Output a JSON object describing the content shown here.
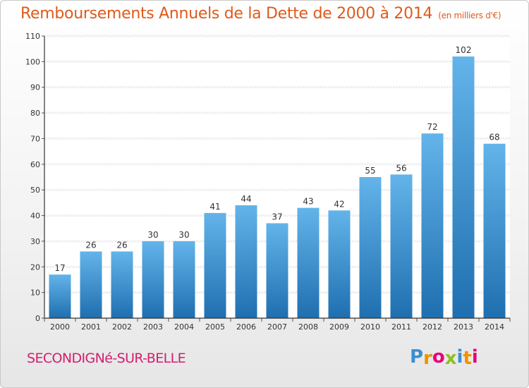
{
  "header": {
    "title": "Remboursements Annuels de la Dette de 2000 à 2014",
    "units": "(en milliers d'€)"
  },
  "footer": {
    "commune": "SECONDIGNé-SUR-BELLE",
    "logo_letters": [
      "P",
      "r",
      "o",
      "x",
      "i",
      "t",
      "i"
    ]
  },
  "colors": {
    "title": "#e05a1a",
    "commune": "#d21f6e",
    "bar_top": "#63b4ea",
    "bar_bottom": "#1f6fb0",
    "logo": [
      "#3a8fd6",
      "#f29100",
      "#e5007e",
      "#8fbf1f",
      "#3a8fd6",
      "#f29100",
      "#e5007e"
    ]
  },
  "chart_data": {
    "type": "bar",
    "title": "Remboursements Annuels de la Dette de 2000 à 2014",
    "xlabel": "",
    "ylabel": "",
    "categories": [
      "2000",
      "2001",
      "2002",
      "2003",
      "2004",
      "2005",
      "2006",
      "2007",
      "2008",
      "2009",
      "2010",
      "2011",
      "2012",
      "2013",
      "2014"
    ],
    "values": [
      17,
      26,
      26,
      30,
      30,
      41,
      44,
      37,
      43,
      42,
      55,
      56,
      72,
      102,
      68
    ],
    "ylim": [
      0,
      110
    ],
    "yticks": [
      0,
      10,
      20,
      30,
      40,
      50,
      60,
      70,
      80,
      90,
      100,
      110
    ],
    "grid": true,
    "legend": "none"
  }
}
